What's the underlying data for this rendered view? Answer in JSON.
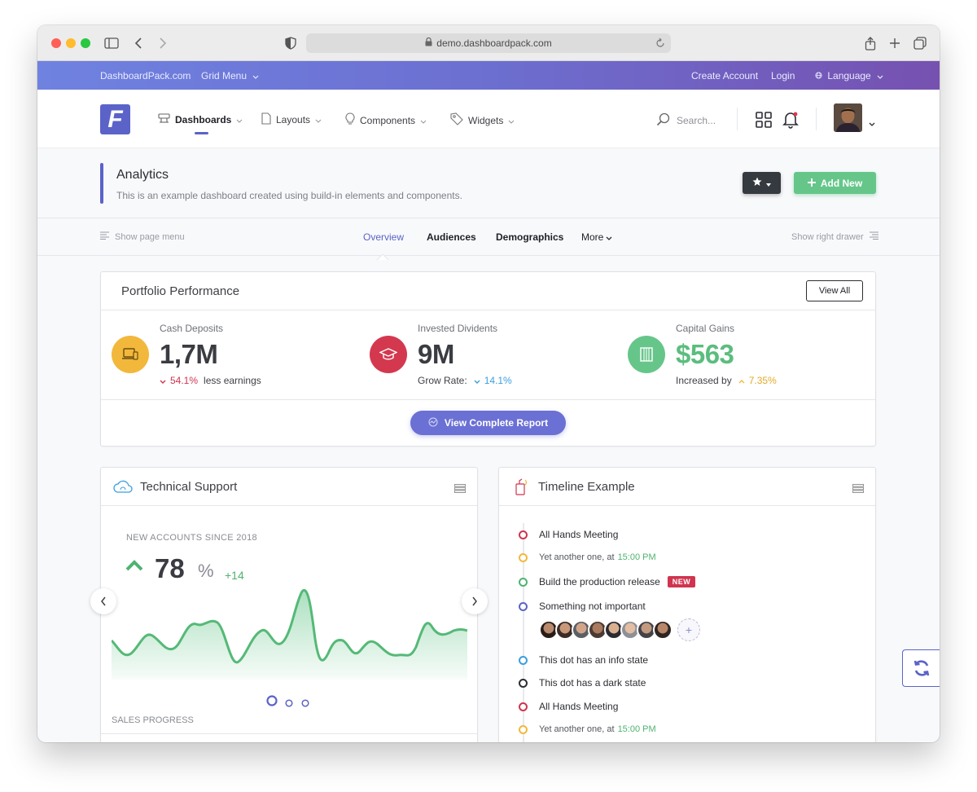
{
  "browser": {
    "url": "demo.dashboardpack.com"
  },
  "topbar": {
    "site_link": "DashboardPack.com",
    "grid_menu": "Grid Menu",
    "create_account": "Create Account",
    "login": "Login",
    "language": "Language"
  },
  "header": {
    "logo_letter": "F",
    "nav": [
      {
        "label": "Dashboards",
        "active": true
      },
      {
        "label": "Layouts"
      },
      {
        "label": "Components"
      },
      {
        "label": "Widgets"
      }
    ],
    "search_placeholder": "Search..."
  },
  "page": {
    "title": "Analytics",
    "subtitle": "This is an example dashboard created using build-in elements and components.",
    "add_new": "Add New"
  },
  "tabsbar": {
    "show_page_menu": "Show page menu",
    "tabs": [
      {
        "label": "Overview",
        "active": true
      },
      {
        "label": "Audiences"
      },
      {
        "label": "Demographics"
      },
      {
        "label": "More"
      }
    ],
    "show_right_drawer": "Show right drawer"
  },
  "portfolio": {
    "title": "Portfolio Performance",
    "view_all": "View All",
    "metrics": [
      {
        "label": "Cash Deposits",
        "value": "1,7M",
        "change": "54.1%",
        "note": "less earnings",
        "color": "#f2b83c",
        "icon": "laptop-icon"
      },
      {
        "label": "Invested Dividents",
        "value": "9M",
        "note_prefix": "Grow Rate:",
        "change": "14.1%",
        "color": "#d4384e",
        "icon": "graduation-cap-icon"
      },
      {
        "label": "Capital Gains",
        "value": "$563",
        "note_prefix": "Increased by",
        "change": "7.35%",
        "color": "#66c68a",
        "icon": "building-icon"
      }
    ],
    "report_button": "View Complete Report"
  },
  "support": {
    "title": "Technical Support",
    "caption": "NEW ACCOUNTS SINCE 2018",
    "value": "78",
    "unit": "%",
    "delta": "+14",
    "sales_progress": "SALES PROGRESS"
  },
  "timeline": {
    "title": "Timeline Example",
    "items": [
      {
        "text": "All Hands Meeting",
        "color": "#d0344f"
      },
      {
        "text": "Yet another one, at",
        "time": "15:00 PM",
        "color": "#f2b83c",
        "small": true
      },
      {
        "text": "Build the production release",
        "badge": "NEW",
        "color": "#4fb36f"
      },
      {
        "text": "Something not important",
        "color": "#5b63c8"
      },
      {
        "text": "This dot has an info state",
        "color": "#3a9fdf"
      },
      {
        "text": "This dot has a dark state",
        "color": "#2c2d33"
      },
      {
        "text": "All Hands Meeting",
        "color": "#d0344f"
      },
      {
        "text": "Yet another one, at",
        "time": "15:00 PM",
        "color": "#f2b83c",
        "small": true
      }
    ],
    "avatar_add": "+"
  },
  "colors": {
    "primary": "#5b63c8",
    "success": "#66c68a",
    "danger": "#d0344f",
    "warning": "#f2b83c",
    "info": "#3a9fdf"
  }
}
